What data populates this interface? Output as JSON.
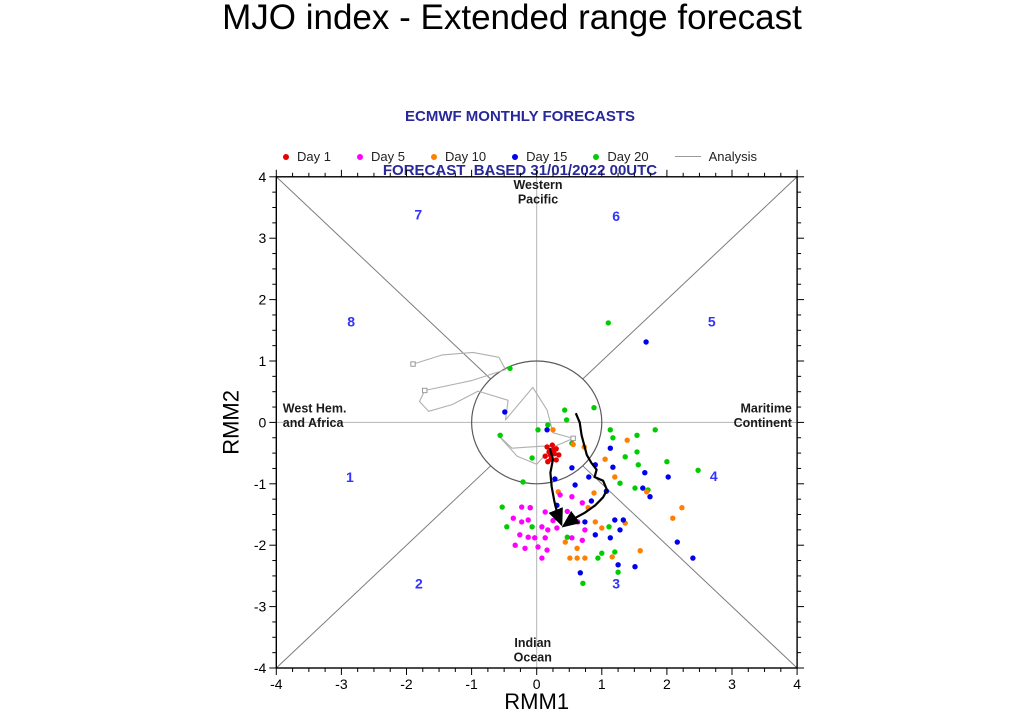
{
  "page": {
    "title": "MJO index - Extended range forecast"
  },
  "subtitle": {
    "line1": "ECMWF MONTHLY FORECASTS",
    "line2": "FORECAST  BASED 31/01/2022 00UTC"
  },
  "legend": {
    "items": [
      {
        "label": "Day 1",
        "color": "#e60000",
        "marker": "dot"
      },
      {
        "label": "Day 5",
        "color": "#ff00ff",
        "marker": "dot"
      },
      {
        "label": "Day 10",
        "color": "#ff8000",
        "marker": "dot"
      },
      {
        "label": "Day 15",
        "color": "#0000ee",
        "marker": "dot"
      },
      {
        "label": "Day 20",
        "color": "#00cc00",
        "marker": "dot"
      },
      {
        "label": "Analysis",
        "color": "#9a9a9a",
        "marker": "line"
      }
    ]
  },
  "chart_data": {
    "type": "scatter",
    "subtype": "mjo-phase-space",
    "xlabel": "RMM1",
    "ylabel": "RMM2",
    "xlim": [
      -4,
      4
    ],
    "ylim": [
      -4,
      4
    ],
    "xticks": [
      -4,
      -3,
      -2,
      -1,
      0,
      1,
      2,
      3,
      4
    ],
    "yticks": [
      -4,
      -3,
      -2,
      -1,
      0,
      1,
      2,
      3,
      4
    ],
    "minor_tick_step": 0.25,
    "unit_circle_radius": 1,
    "grid": "phase-space (diagonals + axes cross + unit circle)",
    "colors": {
      "axes_box": "#000000",
      "diagonals": "#7d7d7d",
      "cross_lines": "#b4b4b4",
      "circle": "#5a5a5a",
      "phase_number": "#3333ff",
      "region_label": "#1a1a1a",
      "trajectory": "#000000",
      "analysis": "#b0b0b0"
    },
    "phase_labels": [
      {
        "label": "1",
        "x": -2.87,
        "y": -0.89
      },
      {
        "label": "2",
        "x": -1.81,
        "y": -2.62
      },
      {
        "label": "3",
        "x": 1.22,
        "y": -2.62
      },
      {
        "label": "4",
        "x": 2.72,
        "y": -0.87
      },
      {
        "label": "5",
        "x": 2.69,
        "y": 1.64
      },
      {
        "label": "6",
        "x": 1.22,
        "y": 3.36
      },
      {
        "label": "7",
        "x": -1.82,
        "y": 3.39
      },
      {
        "label": "8",
        "x": -2.85,
        "y": 1.64
      }
    ],
    "region_labels": [
      {
        "id": "western-pacific",
        "lines": [
          "Western",
          "Pacific"
        ],
        "x": 0.02,
        "y": 3.8,
        "anchor": "middle"
      },
      {
        "id": "maritime-continent",
        "lines": [
          "Maritime",
          "Continent"
        ],
        "x": 3.92,
        "y": 0.16,
        "anchor": "end"
      },
      {
        "id": "west-hem-africa",
        "lines": [
          "West Hem.",
          "and Africa"
        ],
        "x": -3.9,
        "y": 0.16,
        "anchor": "start"
      },
      {
        "id": "indian-ocean",
        "lines": [
          "Indian",
          "Ocean"
        ],
        "x": -0.06,
        "y": -3.66,
        "anchor": "middle"
      }
    ],
    "series": [
      {
        "name": "Day 1",
        "color": "#e60000",
        "points": [
          [
            0.16,
            -0.4
          ],
          [
            0.24,
            -0.37
          ],
          [
            0.3,
            -0.43
          ],
          [
            0.19,
            -0.48
          ],
          [
            0.27,
            -0.51
          ],
          [
            0.34,
            -0.53
          ],
          [
            0.13,
            -0.55
          ],
          [
            0.22,
            -0.6
          ],
          [
            0.3,
            -0.61
          ],
          [
            0.17,
            -0.64
          ],
          [
            0.25,
            -0.45
          ],
          [
            0.21,
            -0.53
          ]
        ]
      },
      {
        "name": "Day 5",
        "color": "#ff00ff",
        "points": [
          [
            -0.36,
            -1.56
          ],
          [
            -0.23,
            -1.62
          ],
          [
            -0.13,
            -1.59
          ],
          [
            0.08,
            -1.7
          ],
          [
            0.17,
            -1.75
          ],
          [
            0.31,
            -1.72
          ],
          [
            0.13,
            -1.88
          ],
          [
            -0.03,
            -1.88
          ],
          [
            -0.13,
            -1.87
          ],
          [
            -0.26,
            -1.83
          ],
          [
            -0.33,
            -2.0
          ],
          [
            -0.18,
            -2.05
          ],
          [
            0.02,
            -2.03
          ],
          [
            0.16,
            -2.08
          ],
          [
            0.08,
            -2.21
          ],
          [
            0.54,
            -1.56
          ],
          [
            0.63,
            -1.62
          ],
          [
            0.74,
            -1.75
          ],
          [
            0.54,
            -1.88
          ],
          [
            0.7,
            -1.92
          ],
          [
            0.36,
            -1.18
          ],
          [
            0.54,
            -1.21
          ],
          [
            0.7,
            -1.31
          ],
          [
            0.13,
            -1.46
          ],
          [
            -0.23,
            -1.38
          ],
          [
            -0.1,
            -1.39
          ],
          [
            0.47,
            -1.45
          ],
          [
            0.25,
            -1.6
          ]
        ]
      },
      {
        "name": "Day 10",
        "color": "#ff8000",
        "points": [
          [
            0.25,
            -0.12
          ],
          [
            0.73,
            -0.4
          ],
          [
            0.88,
            -1.15
          ],
          [
            0.33,
            -1.13
          ],
          [
            0.79,
            -1.39
          ],
          [
            0.62,
            -2.05
          ],
          [
            0.51,
            -2.21
          ],
          [
            0.62,
            -2.21
          ],
          [
            0.74,
            -2.21
          ],
          [
            0.9,
            -1.62
          ],
          [
            1.0,
            -1.72
          ],
          [
            1.39,
            -0.29
          ],
          [
            1.2,
            -0.89
          ],
          [
            1.69,
            -1.13
          ],
          [
            1.36,
            -1.64
          ],
          [
            2.09,
            -1.56
          ],
          [
            1.59,
            -2.09
          ],
          [
            1.16,
            -2.19
          ],
          [
            2.23,
            -1.39
          ],
          [
            0.56,
            -0.36
          ],
          [
            0.44,
            -1.95
          ],
          [
            1.05,
            -0.6
          ]
        ]
      },
      {
        "name": "Day 15",
        "color": "#0000ee",
        "points": [
          [
            -0.49,
            0.17
          ],
          [
            0.16,
            -0.12
          ],
          [
            0.54,
            -0.74
          ],
          [
            0.59,
            -1.02
          ],
          [
            0.31,
            -1.35
          ],
          [
            0.8,
            -0.89
          ],
          [
            0.9,
            -0.69
          ],
          [
            1.13,
            -0.42
          ],
          [
            1.17,
            -0.73
          ],
          [
            1.66,
            -0.82
          ],
          [
            2.02,
            -0.89
          ],
          [
            1.63,
            -1.07
          ],
          [
            1.74,
            -1.21
          ],
          [
            0.74,
            -1.62
          ],
          [
            1.2,
            -1.59
          ],
          [
            1.33,
            -1.59
          ],
          [
            1.28,
            -1.75
          ],
          [
            1.13,
            -1.88
          ],
          [
            1.25,
            -2.32
          ],
          [
            1.51,
            -2.35
          ],
          [
            2.16,
            -1.95
          ],
          [
            2.4,
            -2.21
          ],
          [
            0.67,
            -2.45
          ],
          [
            0.9,
            -1.83
          ],
          [
            1.68,
            1.31
          ],
          [
            0.28,
            -0.92
          ],
          [
            1.07,
            -1.12
          ],
          [
            0.84,
            -1.28
          ]
        ]
      },
      {
        "name": "Day 20",
        "color": "#00cc00",
        "points": [
          [
            1.1,
            1.62
          ],
          [
            -0.41,
            0.88
          ],
          [
            -0.56,
            -0.21
          ],
          [
            0.02,
            -0.12
          ],
          [
            0.17,
            -0.04
          ],
          [
            0.43,
            0.2
          ],
          [
            0.88,
            0.24
          ],
          [
            0.46,
            0.04
          ],
          [
            0.54,
            -0.34
          ],
          [
            -0.07,
            -0.58
          ],
          [
            -0.21,
            -0.97
          ],
          [
            -0.53,
            -1.38
          ],
          [
            -0.1,
            -1.39
          ],
          [
            -0.46,
            -1.7
          ],
          [
            -0.07,
            -1.7
          ],
          [
            0.47,
            -1.87
          ],
          [
            0.94,
            -2.21
          ],
          [
            0.71,
            -2.62
          ],
          [
            1.25,
            -2.44
          ],
          [
            1.0,
            -2.13
          ],
          [
            1.13,
            -0.12
          ],
          [
            1.17,
            -0.25
          ],
          [
            1.54,
            -0.21
          ],
          [
            1.82,
            -0.12
          ],
          [
            1.54,
            -0.48
          ],
          [
            1.36,
            -0.56
          ],
          [
            1.56,
            -0.69
          ],
          [
            2.0,
            -0.64
          ],
          [
            2.48,
            -0.78
          ],
          [
            1.28,
            -0.99
          ],
          [
            1.51,
            -1.07
          ],
          [
            1.71,
            -1.1
          ],
          [
            1.11,
            -1.7
          ],
          [
            1.2,
            -2.11
          ]
        ]
      }
    ],
    "analysis": {
      "name": "Analysis",
      "color": "#b0b0b0",
      "points": [
        [
          -1.9,
          0.95
        ],
        [
          -1.45,
          1.1
        ],
        [
          -0.98,
          1.14
        ],
        [
          -0.58,
          1.06
        ],
        [
          -0.48,
          0.86
        ],
        [
          -1.0,
          0.68
        ],
        [
          -1.72,
          0.52
        ],
        [
          -1.8,
          0.34
        ],
        [
          -1.66,
          0.18
        ],
        [
          -1.3,
          0.29
        ],
        [
          -0.9,
          0.51
        ],
        [
          -0.44,
          0.36
        ],
        [
          -0.48,
          0.04
        ],
        [
          -0.06,
          0.57
        ],
        [
          0.16,
          0.2
        ],
        [
          0.25,
          -0.17
        ],
        [
          0.56,
          -0.26
        ],
        [
          0.3,
          -0.38
        ],
        [
          0.05,
          -0.39
        ],
        [
          -0.38,
          -0.42
        ],
        [
          -0.6,
          -0.2
        ],
        [
          -0.3,
          -0.55
        ],
        [
          0.0,
          -0.68
        ],
        [
          0.2,
          -0.45
        ]
      ],
      "marker_indices": [
        0,
        6,
        16
      ]
    },
    "trajectory": {
      "name": "ensemble-mean-forecast",
      "color": "#000000",
      "segments": [
        [
          [
            0.2,
            -0.42
          ],
          [
            0.25,
            -0.6
          ],
          [
            0.21,
            -0.82
          ],
          [
            0.23,
            -1.05
          ],
          [
            0.27,
            -1.28
          ],
          [
            0.32,
            -1.5
          ],
          [
            0.38,
            -1.66
          ]
        ],
        [
          [
            0.6,
            0.15
          ],
          [
            0.66,
            0.0
          ],
          [
            0.69,
            -0.21
          ],
          [
            0.73,
            -0.37
          ],
          [
            0.77,
            -0.53
          ],
          [
            0.84,
            -0.66
          ],
          [
            0.92,
            -0.77
          ],
          [
            0.89,
            -0.89
          ],
          [
            1.02,
            -0.95
          ],
          [
            1.08,
            -1.1
          ],
          [
            1.02,
            -1.22
          ],
          [
            0.9,
            -1.35
          ],
          [
            0.74,
            -1.47
          ],
          [
            0.55,
            -1.58
          ],
          [
            0.41,
            -1.69
          ]
        ]
      ]
    }
  }
}
